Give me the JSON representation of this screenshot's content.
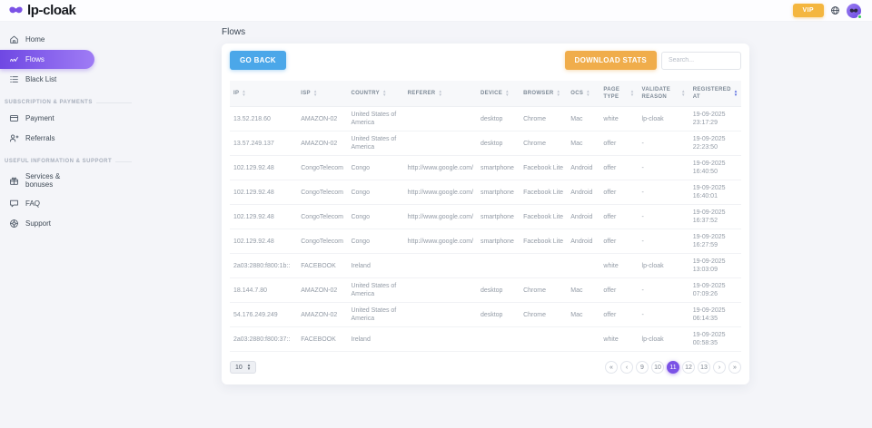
{
  "brand": {
    "name": "lp-cloak",
    "logo_icon": "mask-icon"
  },
  "topbar": {
    "vip_label": "VIP",
    "icons": [
      "globe-icon",
      "user-avatar"
    ]
  },
  "colors": {
    "accent": "#7b52e6",
    "accent_grad_a": "#6f48e3",
    "accent_grad_b": "#9f7cf5",
    "blue": "#4ba7e9",
    "orange": "#f0ad4b",
    "vip": "#f4b63f",
    "green": "#34c759",
    "sort_active": "#5a6ee0"
  },
  "sidebar": {
    "sections": [
      {
        "label": "",
        "items": [
          {
            "id": "home",
            "label": "Home",
            "icon": "home-icon",
            "active": false
          },
          {
            "id": "flows",
            "label": "Flows",
            "icon": "flows-icon",
            "active": true
          },
          {
            "id": "black-list",
            "label": "Black List",
            "icon": "list-icon",
            "active": false
          }
        ]
      },
      {
        "label": "SUBSCRIPTION & PAYMENTS",
        "items": [
          {
            "id": "payment",
            "label": "Payment",
            "icon": "card-icon",
            "active": false
          },
          {
            "id": "referrals",
            "label": "Referrals",
            "icon": "person-add-icon",
            "active": false
          }
        ]
      },
      {
        "label": "USEFUL INFORMATION & SUPPORT",
        "items": [
          {
            "id": "services-bonuses",
            "label": "Services & bonuses",
            "icon": "gift-icon",
            "active": false
          },
          {
            "id": "faq",
            "label": "FAQ",
            "icon": "chat-icon",
            "active": false
          },
          {
            "id": "support",
            "label": "Support",
            "icon": "lifebuoy-icon",
            "active": false
          }
        ]
      }
    ]
  },
  "main": {
    "page_title": "Flows",
    "toolbar": {
      "go_back_label": "GO BACK",
      "download_stats_label": "DOWNLOAD STATS",
      "search_placeholder": "Search..."
    },
    "table": {
      "columns": [
        {
          "key": "ip",
          "label": "IP",
          "sort_active": false
        },
        {
          "key": "isp",
          "label": "ISP",
          "sort_active": false
        },
        {
          "key": "country",
          "label": "COUNTRY",
          "sort_active": false
        },
        {
          "key": "referer",
          "label": "REFERER",
          "sort_active": false
        },
        {
          "key": "device",
          "label": "DEVICE",
          "sort_active": false
        },
        {
          "key": "browser",
          "label": "BROWSER",
          "sort_active": false
        },
        {
          "key": "ocs",
          "label": "OCS",
          "sort_active": false
        },
        {
          "key": "page_type",
          "label": "PAGE TYPE",
          "sort_active": false
        },
        {
          "key": "validate_reason",
          "label": "VALIDATE REASON",
          "sort_active": false
        },
        {
          "key": "registered_at",
          "label": "REGISTERED AT",
          "sort_active": true
        }
      ],
      "rows": [
        {
          "ip": "13.52.218.60",
          "isp": "AMAZON-02",
          "country": "United States of America",
          "referer": "",
          "device": "desktop",
          "browser": "Chrome",
          "ocs": "Mac",
          "page_type": "white",
          "validate_reason": "lp-cloak",
          "registered_at": "19-09-2025 23:17:29"
        },
        {
          "ip": "13.57.249.137",
          "isp": "AMAZON-02",
          "country": "United States of America",
          "referer": "",
          "device": "desktop",
          "browser": "Chrome",
          "ocs": "Mac",
          "page_type": "offer",
          "validate_reason": "-",
          "registered_at": "19-09-2025 22:23:50"
        },
        {
          "ip": "102.129.92.48",
          "isp": "CongoTelecom",
          "country": "Congo",
          "referer": "http://www.google.com/",
          "device": "smartphone",
          "browser": "Facebook Lite",
          "ocs": "Android",
          "page_type": "offer",
          "validate_reason": "-",
          "registered_at": "19-09-2025 16:40:50"
        },
        {
          "ip": "102.129.92.48",
          "isp": "CongoTelecom",
          "country": "Congo",
          "referer": "http://www.google.com/",
          "device": "smartphone",
          "browser": "Facebook Lite",
          "ocs": "Android",
          "page_type": "offer",
          "validate_reason": "-",
          "registered_at": "19-09-2025 16:40:01"
        },
        {
          "ip": "102.129.92.48",
          "isp": "CongoTelecom",
          "country": "Congo",
          "referer": "http://www.google.com/",
          "device": "smartphone",
          "browser": "Facebook Lite",
          "ocs": "Android",
          "page_type": "offer",
          "validate_reason": "-",
          "registered_at": "19-09-2025 16:37:52"
        },
        {
          "ip": "102.129.92.48",
          "isp": "CongoTelecom",
          "country": "Congo",
          "referer": "http://www.google.com/",
          "device": "smartphone",
          "browser": "Facebook Lite",
          "ocs": "Android",
          "page_type": "offer",
          "validate_reason": "-",
          "registered_at": "19-09-2025 16:27:59"
        },
        {
          "ip": "2a03:2880:f800:1b::",
          "isp": "FACEBOOK",
          "country": "Ireland",
          "referer": "",
          "device": "",
          "browser": "",
          "ocs": "",
          "page_type": "white",
          "validate_reason": "lp-cloak",
          "registered_at": "19-09-2025 13:03:09"
        },
        {
          "ip": "18.144.7.80",
          "isp": "AMAZON-02",
          "country": "United States of America",
          "referer": "",
          "device": "desktop",
          "browser": "Chrome",
          "ocs": "Mac",
          "page_type": "offer",
          "validate_reason": "-",
          "registered_at": "19-09-2025 07:09:26"
        },
        {
          "ip": "54.176.249.249",
          "isp": "AMAZON-02",
          "country": "United States of America",
          "referer": "",
          "device": "desktop",
          "browser": "Chrome",
          "ocs": "Mac",
          "page_type": "offer",
          "validate_reason": "-",
          "registered_at": "19-09-2025 06:14:35"
        },
        {
          "ip": "2a03:2880:f800:37::",
          "isp": "FACEBOOK",
          "country": "Ireland",
          "referer": "",
          "device": "",
          "browser": "",
          "ocs": "",
          "page_type": "white",
          "validate_reason": "lp-cloak",
          "registered_at": "19-09-2025 00:58:35"
        }
      ]
    },
    "pagination": {
      "page_size": "10",
      "items": [
        {
          "label": "«",
          "kind": "first",
          "active": false
        },
        {
          "label": "‹",
          "kind": "prev",
          "active": false
        },
        {
          "label": "9",
          "kind": "page",
          "active": false
        },
        {
          "label": "10",
          "kind": "page",
          "active": false
        },
        {
          "label": "11",
          "kind": "page",
          "active": true
        },
        {
          "label": "12",
          "kind": "page",
          "active": false
        },
        {
          "label": "13",
          "kind": "page",
          "active": false
        },
        {
          "label": "›",
          "kind": "next",
          "active": false
        },
        {
          "label": "»",
          "kind": "last",
          "active": false
        }
      ]
    }
  }
}
